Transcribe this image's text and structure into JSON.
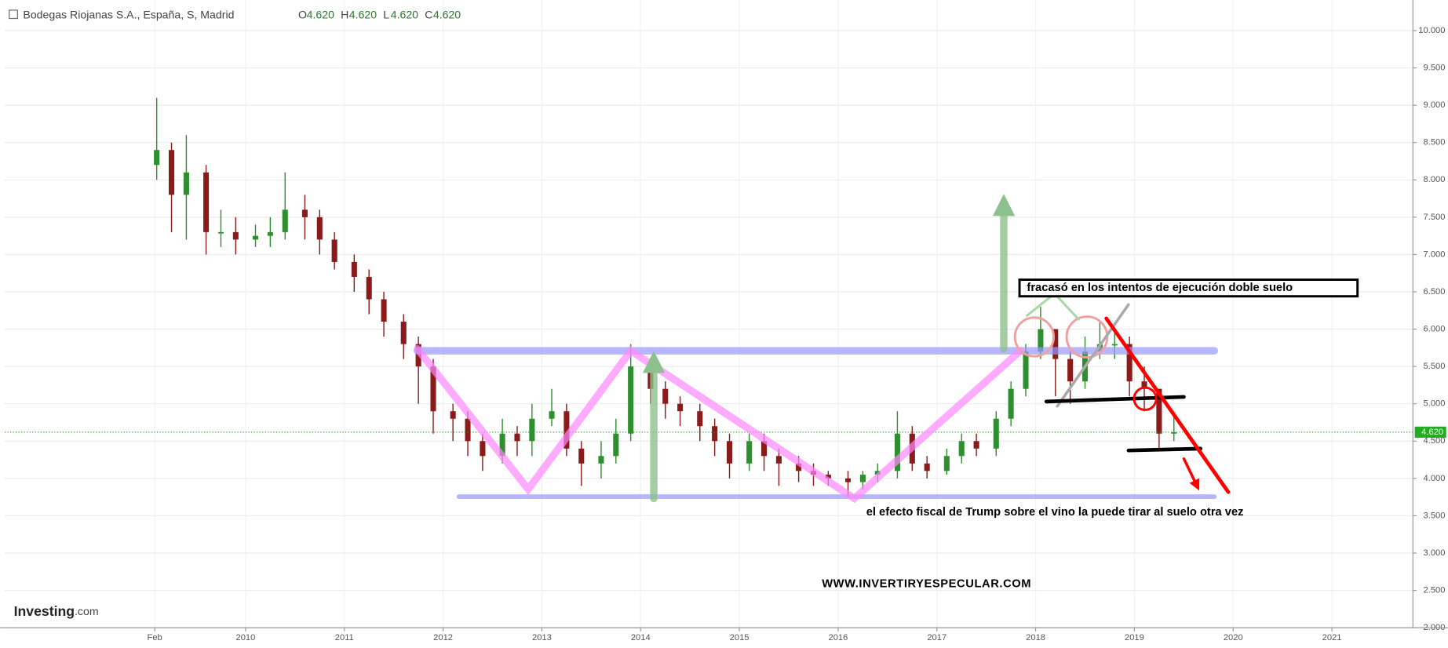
{
  "header": {
    "title": "Bodegas Riojanas S.A., España, S, Madrid",
    "ohlc": [
      {
        "label": "O",
        "value": "4.620"
      },
      {
        "label": "H",
        "value": "4.620"
      },
      {
        "label": "L",
        "value": "4.620"
      },
      {
        "label": "C",
        "value": "4.620"
      }
    ]
  },
  "chart_data": {
    "type": "candlestick",
    "x": [
      2009.1,
      2009.25,
      2009.4,
      2009.6,
      2009.75,
      2009.9,
      2010.1,
      2010.25,
      2010.4,
      2010.6,
      2010.75,
      2010.9,
      2011.1,
      2011.25,
      2011.4,
      2011.6,
      2011.75,
      2011.9,
      2012.1,
      2012.25,
      2012.4,
      2012.6,
      2012.75,
      2012.9,
      2013.1,
      2013.25,
      2013.4,
      2013.6,
      2013.75,
      2013.9,
      2014.1,
      2014.25,
      2014.4,
      2014.6,
      2014.75,
      2014.9,
      2015.1,
      2015.25,
      2015.4,
      2015.6,
      2015.75,
      2015.9,
      2016.1,
      2016.25,
      2016.4,
      2016.6,
      2016.75,
      2016.9,
      2017.1,
      2017.25,
      2017.4,
      2017.6,
      2017.75,
      2017.9,
      2018.05,
      2018.2,
      2018.35,
      2018.5,
      2018.65,
      2018.8,
      2018.95,
      2019.1,
      2019.25,
      2019.4
    ],
    "open": [
      8.2,
      8.4,
      7.8,
      8.1,
      7.3,
      7.3,
      7.2,
      7.25,
      7.3,
      7.6,
      7.5,
      7.2,
      6.9,
      6.7,
      6.4,
      6.1,
      5.8,
      5.5,
      4.9,
      4.8,
      4.5,
      4.3,
      4.6,
      4.5,
      4.8,
      4.9,
      4.4,
      4.2,
      4.3,
      4.6,
      5.5,
      5.2,
      5.0,
      4.9,
      4.7,
      4.5,
      4.2,
      4.5,
      4.3,
      4.2,
      4.1,
      4.05,
      4.0,
      3.95,
      4.05,
      4.1,
      4.6,
      4.2,
      4.1,
      4.3,
      4.5,
      4.4,
      4.8,
      5.2,
      5.7,
      6.0,
      5.6,
      5.3,
      5.7,
      5.8,
      5.8,
      5.3,
      5.2,
      4.6
    ],
    "high": [
      9.1,
      8.5,
      8.6,
      8.2,
      7.6,
      7.5,
      7.4,
      7.5,
      8.1,
      7.8,
      7.6,
      7.3,
      7.0,
      6.8,
      6.5,
      6.2,
      5.9,
      5.6,
      5.0,
      4.9,
      4.6,
      4.8,
      4.7,
      5.0,
      5.2,
      5.0,
      4.5,
      4.5,
      4.8,
      5.8,
      5.6,
      5.3,
      5.1,
      5.0,
      4.8,
      4.6,
      4.6,
      4.6,
      4.4,
      4.3,
      4.2,
      4.1,
      4.1,
      4.1,
      4.2,
      4.9,
      4.7,
      4.3,
      4.4,
      4.6,
      4.6,
      4.9,
      5.3,
      5.8,
      6.3,
      6.0,
      5.7,
      5.9,
      6.1,
      6.0,
      5.9,
      5.5,
      5.2,
      4.9
    ],
    "low": [
      8.0,
      7.3,
      7.2,
      7.0,
      7.1,
      7.0,
      7.1,
      7.1,
      7.2,
      7.2,
      7.0,
      6.8,
      6.5,
      6.2,
      5.9,
      5.6,
      5.0,
      4.6,
      4.5,
      4.3,
      4.1,
      4.2,
      4.3,
      4.3,
      4.7,
      4.3,
      3.9,
      4.0,
      4.2,
      4.5,
      5.0,
      4.8,
      4.7,
      4.5,
      4.3,
      4.0,
      4.1,
      4.1,
      3.9,
      3.95,
      3.9,
      3.9,
      3.75,
      3.85,
      3.95,
      4.0,
      4.1,
      4.0,
      4.05,
      4.2,
      4.3,
      4.3,
      4.7,
      5.1,
      5.6,
      5.1,
      5.0,
      5.2,
      5.6,
      5.6,
      5.1,
      4.9,
      4.4,
      4.5
    ],
    "close": [
      8.4,
      7.8,
      8.1,
      7.3,
      7.3,
      7.2,
      7.25,
      7.3,
      7.6,
      7.5,
      7.2,
      6.9,
      6.7,
      6.4,
      6.1,
      5.8,
      5.5,
      4.9,
      4.8,
      4.5,
      4.3,
      4.6,
      4.5,
      4.8,
      4.9,
      4.4,
      4.2,
      4.3,
      4.6,
      5.5,
      5.2,
      5.0,
      4.9,
      4.7,
      4.5,
      4.2,
      4.5,
      4.3,
      4.2,
      4.1,
      4.05,
      4.0,
      3.95,
      4.05,
      4.1,
      4.6,
      4.2,
      4.1,
      4.3,
      4.5,
      4.4,
      4.8,
      5.2,
      5.7,
      6.0,
      5.6,
      5.3,
      5.7,
      5.8,
      5.8,
      5.3,
      5.2,
      4.6,
      4.62
    ],
    "up_color": "#2d8f2d",
    "down_color": "#8b1a1a",
    "xlim": [
      2007.56,
      2021.82
    ],
    "xticks": [
      {
        "value": 2009.08,
        "label": "Feb"
      },
      2010,
      2011,
      2012,
      2013,
      2014,
      2015,
      2016,
      2017,
      2018,
      2019,
      2020,
      2021
    ],
    "ylim": [
      2.0,
      10.41
    ],
    "yticks": [
      {
        "value": 2,
        "label": "2.000"
      },
      {
        "value": 2.5,
        "label": "2.500"
      },
      {
        "value": 3,
        "label": "3.000"
      },
      {
        "value": 3.5,
        "label": "3.500"
      },
      {
        "value": 4,
        "label": "4.000"
      },
      {
        "value": 4.5,
        "label": "4.500"
      },
      {
        "value": 5,
        "label": "5.000"
      },
      {
        "value": 5.5,
        "label": "5.500"
      },
      {
        "value": 6,
        "label": "6.000"
      },
      {
        "value": 6.5,
        "label": "6.500"
      },
      {
        "value": 7,
        "label": "7.000"
      },
      {
        "value": 7.5,
        "label": "7.500"
      },
      {
        "value": 8,
        "label": "8.000"
      },
      {
        "value": 8.5,
        "label": "8.500"
      },
      {
        "value": 9,
        "label": "9.000"
      },
      {
        "value": 9.5,
        "label": "9.500"
      },
      {
        "value": 10,
        "label": "10.000"
      }
    ],
    "grid": true,
    "last_price": {
      "value": 4.62,
      "label": "4.620",
      "color": "#22aa22"
    },
    "annotations": [
      "fracasó   en los intentos de ejecución doble suelo",
      "el efecto fiscal de Trump sobre el vino la puede tirar al suelo otra vez",
      "WWW.INVERTIRYESPECULAR.COM"
    ],
    "logo": {
      "name": "Investing",
      "suffix": ".com"
    }
  }
}
